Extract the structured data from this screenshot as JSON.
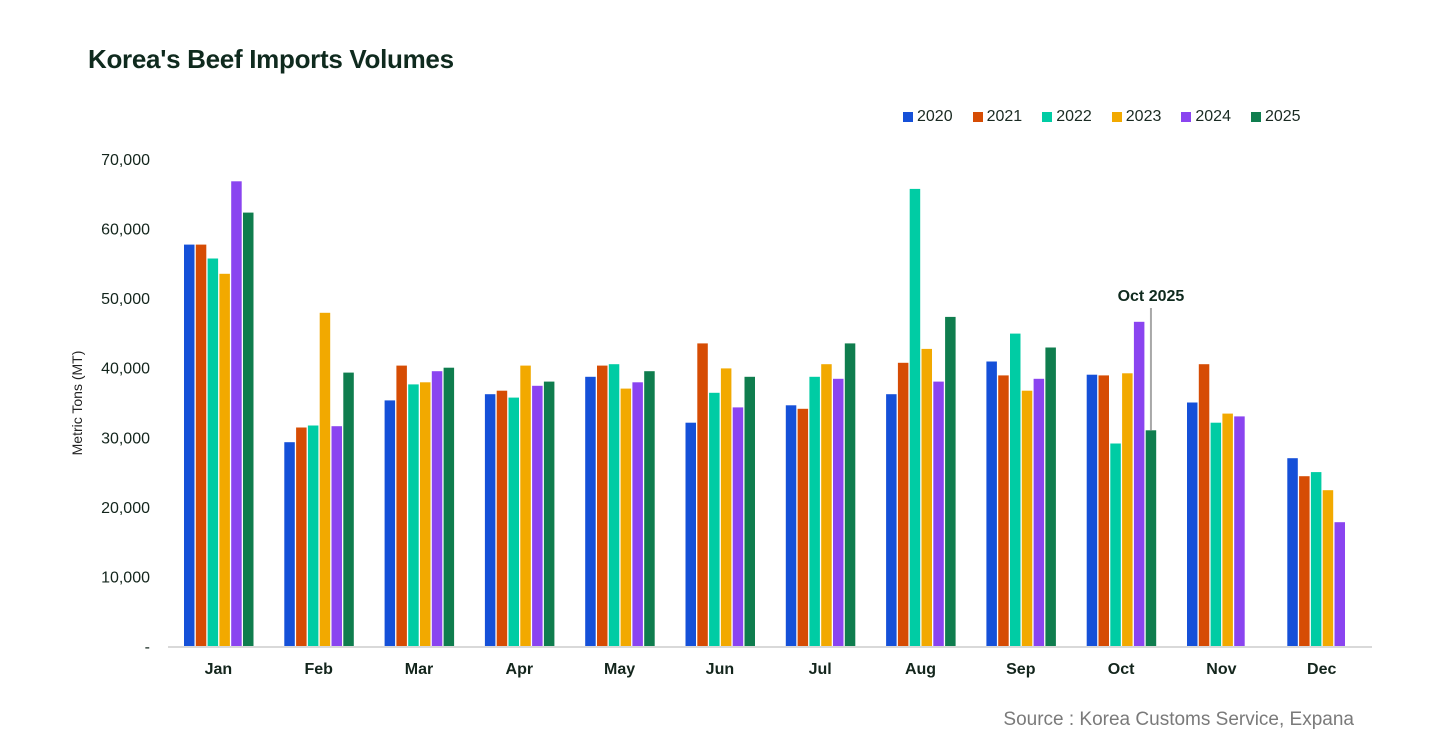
{
  "chart_data": {
    "type": "bar",
    "title": "Korea's Beef Imports Volumes",
    "xlabel": "",
    "ylabel": "Metric Tons (MT)",
    "ylim": [
      0,
      70000
    ],
    "yticks": [
      0,
      10000,
      20000,
      30000,
      40000,
      50000,
      60000,
      70000
    ],
    "ytick_labels": [
      "-",
      "10,000",
      "20,000",
      "30,000",
      "40,000",
      "50,000",
      "60,000",
      "70,000"
    ],
    "grid": false,
    "legend_position": "top-right",
    "categories": [
      "Jan",
      "Feb",
      "Mar",
      "Apr",
      "May",
      "Jun",
      "Jul",
      "Aug",
      "Sep",
      "Oct",
      "Nov",
      "Dec"
    ],
    "series": [
      {
        "name": "2020",
        "color": "#1550d8",
        "values": [
          57700,
          29300,
          35300,
          36200,
          38700,
          32100,
          34600,
          36200,
          40900,
          39000,
          35000,
          27000
        ]
      },
      {
        "name": "2021",
        "color": "#d64c04",
        "values": [
          57700,
          31400,
          40300,
          36700,
          40300,
          43500,
          34100,
          40700,
          38900,
          38900,
          40500,
          24400
        ]
      },
      {
        "name": "2022",
        "color": "#00cca4",
        "values": [
          55700,
          31700,
          37600,
          35700,
          40500,
          36400,
          38700,
          65700,
          44900,
          29100,
          32100,
          25000
        ]
      },
      {
        "name": "2023",
        "color": "#f2a900",
        "values": [
          53500,
          47900,
          37900,
          40300,
          37000,
          39900,
          40500,
          42700,
          36700,
          39200,
          33400,
          22400
        ]
      },
      {
        "name": "2024",
        "color": "#8a44f0",
        "values": [
          66800,
          31600,
          39500,
          37400,
          37900,
          34300,
          38400,
          38000,
          38400,
          46600,
          33000,
          17800
        ]
      },
      {
        "name": "2025",
        "color": "#0f7d4e",
        "values": [
          62300,
          39300,
          40000,
          38000,
          39500,
          38700,
          43500,
          47300,
          42900,
          31000,
          null,
          null
        ]
      }
    ],
    "annotations": [
      {
        "text": "Oct 2025",
        "category": "Oct",
        "series": "2025"
      }
    ]
  },
  "source": "Source : Korea Customs Service, Expana"
}
